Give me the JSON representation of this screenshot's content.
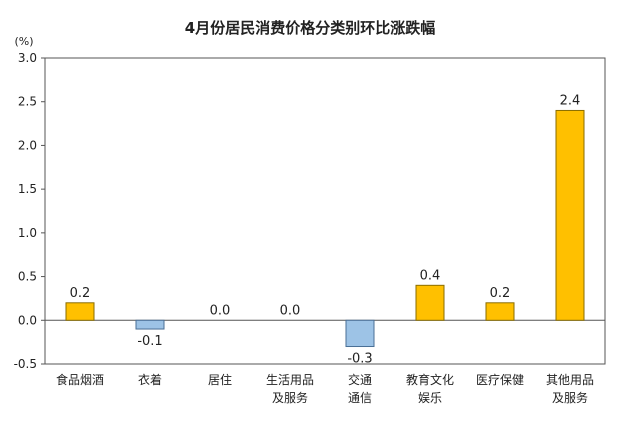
{
  "chart_data": {
    "type": "bar",
    "title": "4月份居民消费价格分类别环比涨跌幅",
    "unit_label": "(%)",
    "categories": [
      [
        "食品烟酒"
      ],
      [
        "衣着"
      ],
      [
        "居住"
      ],
      [
        "生活用品",
        "及服务"
      ],
      [
        "交通",
        "通信"
      ],
      [
        "教育文化",
        "娱乐"
      ],
      [
        "医疗保健"
      ],
      [
        "其他用品",
        "及服务"
      ]
    ],
    "values": [
      0.2,
      -0.1,
      0.0,
      0.0,
      -0.3,
      0.4,
      0.2,
      2.4
    ],
    "value_labels": [
      "0.2",
      "-0.1",
      "0.0",
      "0.0",
      "-0.3",
      "0.4",
      "0.2",
      "2.4"
    ],
    "yticks": [
      "3.0",
      "2.5",
      "2.0",
      "1.5",
      "1.0",
      "0.5",
      "0.0",
      "-0.5"
    ],
    "ylim": [
      -0.5,
      3.0
    ],
    "grid": false,
    "colors": {
      "positive": "#FFC000",
      "positive_stroke": "#8a6d00",
      "negative": "#9DC3E6",
      "negative_stroke": "#4a6f95",
      "axis": "#555555"
    }
  }
}
